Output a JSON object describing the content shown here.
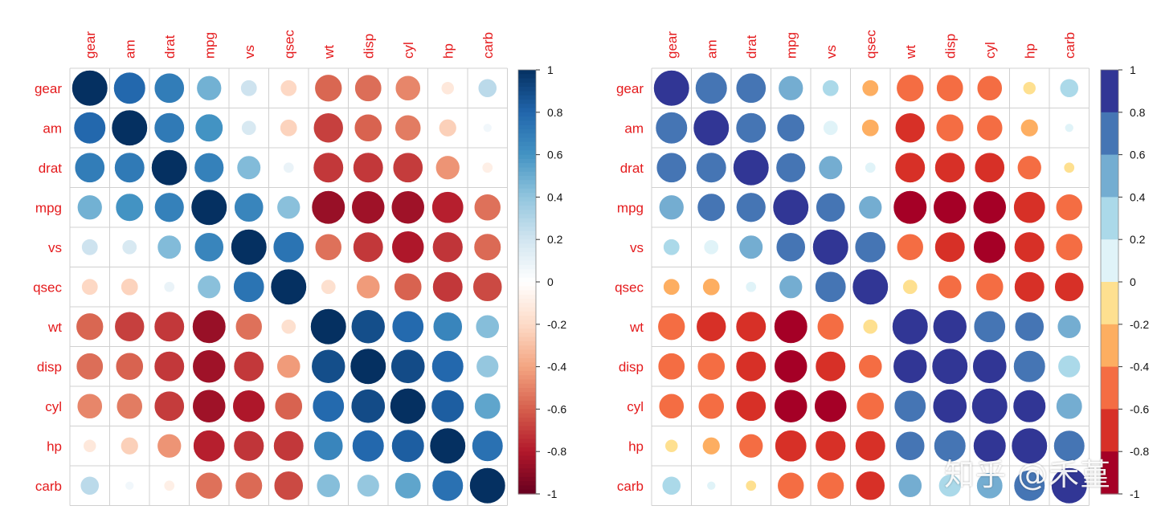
{
  "chart_data": [
    {
      "type": "heatmap",
      "variant": "correlation-circles",
      "title": "",
      "variables": [
        "gear",
        "am",
        "drat",
        "mpg",
        "vs",
        "qsec",
        "wt",
        "disp",
        "cyl",
        "hp",
        "carb"
      ],
      "matrix": [
        [
          1.0,
          0.79,
          0.7,
          0.48,
          0.21,
          -0.21,
          -0.58,
          -0.56,
          -0.49,
          -0.13,
          0.27
        ],
        [
          0.79,
          1.0,
          0.71,
          0.6,
          0.17,
          -0.23,
          -0.69,
          -0.59,
          -0.52,
          -0.24,
          0.06
        ],
        [
          0.7,
          0.71,
          1.0,
          0.68,
          0.44,
          0.09,
          -0.71,
          -0.71,
          -0.7,
          -0.45,
          -0.09
        ],
        [
          0.48,
          0.6,
          0.68,
          1.0,
          0.66,
          0.42,
          -0.87,
          -0.85,
          -0.85,
          -0.78,
          -0.55
        ],
        [
          0.21,
          0.17,
          0.44,
          0.66,
          1.0,
          0.74,
          -0.55,
          -0.71,
          -0.81,
          -0.72,
          -0.57
        ],
        [
          -0.21,
          -0.23,
          0.09,
          0.42,
          0.74,
          1.0,
          -0.17,
          -0.43,
          -0.59,
          -0.71,
          -0.66
        ],
        [
          -0.58,
          -0.69,
          -0.71,
          -0.87,
          -0.55,
          -0.17,
          1.0,
          0.89,
          0.78,
          0.66,
          0.43
        ],
        [
          -0.56,
          -0.59,
          -0.71,
          -0.85,
          -0.71,
          -0.43,
          0.89,
          1.0,
          0.9,
          0.79,
          0.39
        ],
        [
          -0.49,
          -0.52,
          -0.7,
          -0.85,
          -0.81,
          -0.59,
          0.78,
          0.9,
          1.0,
          0.83,
          0.53
        ],
        [
          -0.13,
          -0.24,
          -0.45,
          -0.78,
          -0.72,
          -0.71,
          0.66,
          0.79,
          0.83,
          1.0,
          0.75
        ],
        [
          0.27,
          0.06,
          -0.09,
          -0.55,
          -0.57,
          -0.66,
          0.43,
          0.39,
          0.53,
          0.75,
          1.0
        ]
      ],
      "color_scale": "continuous",
      "legend_ticks": [
        "1",
        "0.8",
        "0.6",
        "0.4",
        "0.2",
        "0",
        "-0.2",
        "-0.4",
        "-0.6",
        "-0.8",
        "-1"
      ],
      "legend_range": [
        -1,
        1
      ],
      "label_color": "#e41a1c",
      "palette": [
        "#67001f",
        "#b2182b",
        "#d6604d",
        "#f4a582",
        "#fddbc7",
        "#ffffff",
        "#d1e5f0",
        "#92c5de",
        "#4393c3",
        "#2166ac",
        "#053061"
      ]
    },
    {
      "type": "heatmap",
      "variant": "correlation-circles",
      "title": "",
      "variables": [
        "gear",
        "am",
        "drat",
        "mpg",
        "vs",
        "qsec",
        "wt",
        "disp",
        "cyl",
        "hp",
        "carb"
      ],
      "matrix": [
        [
          1.0,
          0.79,
          0.7,
          0.48,
          0.21,
          -0.21,
          -0.58,
          -0.56,
          -0.49,
          -0.13,
          0.27
        ],
        [
          0.79,
          1.0,
          0.71,
          0.6,
          0.17,
          -0.23,
          -0.69,
          -0.59,
          -0.52,
          -0.24,
          0.06
        ],
        [
          0.7,
          0.71,
          1.0,
          0.68,
          0.44,
          0.09,
          -0.71,
          -0.71,
          -0.7,
          -0.45,
          -0.09
        ],
        [
          0.48,
          0.6,
          0.68,
          1.0,
          0.66,
          0.42,
          -0.87,
          -0.85,
          -0.85,
          -0.78,
          -0.55
        ],
        [
          0.21,
          0.17,
          0.44,
          0.66,
          1.0,
          0.74,
          -0.55,
          -0.71,
          -0.81,
          -0.72,
          -0.57
        ],
        [
          -0.21,
          -0.23,
          0.09,
          0.42,
          0.74,
          1.0,
          -0.17,
          -0.43,
          -0.59,
          -0.71,
          -0.66
        ],
        [
          -0.58,
          -0.69,
          -0.71,
          -0.87,
          -0.55,
          -0.17,
          1.0,
          0.89,
          0.78,
          0.66,
          0.43
        ],
        [
          -0.56,
          -0.59,
          -0.71,
          -0.85,
          -0.71,
          -0.43,
          0.89,
          1.0,
          0.9,
          0.79,
          0.39
        ],
        [
          -0.49,
          -0.52,
          -0.7,
          -0.85,
          -0.81,
          -0.59,
          0.78,
          0.9,
          1.0,
          0.83,
          0.53
        ],
        [
          -0.13,
          -0.24,
          -0.45,
          -0.78,
          -0.72,
          -0.71,
          0.66,
          0.79,
          0.83,
          1.0,
          0.75
        ],
        [
          0.27,
          0.06,
          -0.09,
          -0.55,
          -0.57,
          -0.66,
          0.43,
          0.39,
          0.53,
          0.75,
          1.0
        ]
      ],
      "color_scale": "binned",
      "legend_ticks": [
        "1",
        "0.8",
        "0.6",
        "0.4",
        "0.2",
        "0",
        "-0.2",
        "-0.4",
        "-0.6",
        "-0.8",
        "-1"
      ],
      "legend_range": [
        -1,
        1
      ],
      "label_color": "#e41a1c",
      "palette": [
        "#a50026",
        "#d73027",
        "#f46d43",
        "#fdae61",
        "#fee090",
        "#ffffbf",
        "#e0f3f8",
        "#abd9e9",
        "#74add1",
        "#4575b4",
        "#313695"
      ]
    }
  ],
  "watermark": "知乎 @禾堇"
}
